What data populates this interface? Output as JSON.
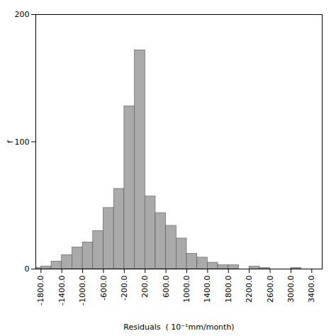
{
  "chart_data": {
    "type": "histogram",
    "xlabel": "Residuals  ( 10⁻¹mm/month)",
    "ylabel": "f",
    "bins": [
      -2000,
      -1800,
      -1600,
      -1400,
      -1200,
      -1000,
      -800,
      -600,
      -400,
      -200,
      0,
      200,
      400,
      600,
      800,
      1000,
      1200,
      1400,
      1600,
      1800,
      2000,
      2200,
      2400,
      2600,
      2800,
      3000,
      3200,
      3400
    ],
    "values": [
      1,
      2,
      6,
      11,
      17,
      21,
      30,
      48,
      63,
      128,
      172,
      57,
      44,
      34,
      24,
      12,
      9,
      5,
      3,
      3,
      0,
      2,
      1,
      0,
      0,
      1,
      0
    ],
    "color": "#aaaaaa",
    "xlim": [
      -1900,
      3600
    ],
    "ylim": [
      0,
      200
    ],
    "xticks": [
      {
        "value": -1800,
        "label": "-1800.0"
      },
      {
        "value": -1400,
        "label": "-1400.0"
      },
      {
        "value": -1000,
        "label": "-1000.0"
      },
      {
        "value": -600,
        "label": "-600.0"
      },
      {
        "value": -200,
        "label": "-200.0"
      },
      {
        "value": 200,
        "label": "200.0"
      },
      {
        "value": 600,
        "label": "600.0"
      },
      {
        "value": 1000,
        "label": "1000.0"
      },
      {
        "value": 1400,
        "label": "1400.0"
      },
      {
        "value": 1800,
        "label": "1800.0"
      },
      {
        "value": 2200,
        "label": "2200.0"
      },
      {
        "value": 2600,
        "label": "2600.0"
      },
      {
        "value": 3000,
        "label": "3000.0"
      },
      {
        "value": 3400,
        "label": "3400.0"
      }
    ],
    "yticks": [
      0,
      100,
      200
    ]
  }
}
